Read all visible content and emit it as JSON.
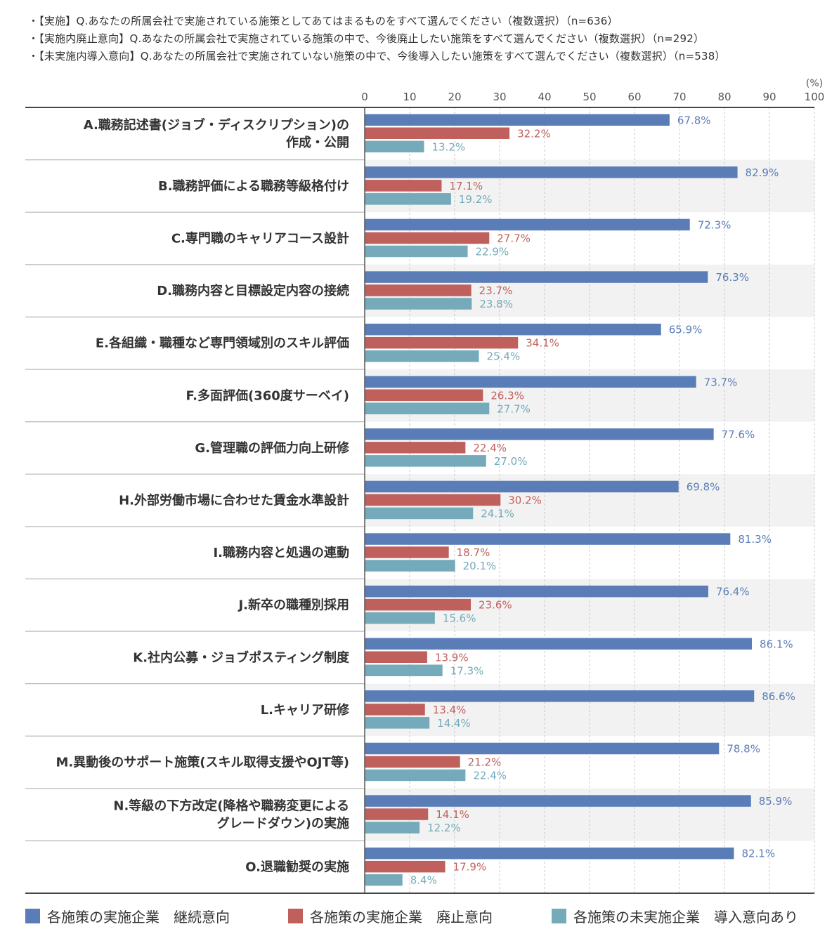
{
  "notes": [
    "・【実施】Q.あなたの所属会社で実施されている施策としてあてはまるものをすべて選んでください（複数選択）（n=636）",
    "・【実施内廃止意向】Q.あなたの所属会社で実施されている施策の中で、今後廃止したい施策をすべて選んでください（複数選択）（n=292）",
    "・【未実施内導入意向】Q.あなたの所属会社で実施されていない施策の中で、今後導入したい施策をすべて選んでください（複数選択）（n=538）"
  ],
  "colors": {
    "continue": "#5a7db8",
    "abolish": "#c0605c",
    "introduce": "#74aab9",
    "row_shade": "#f2f2f2",
    "grid": "#c8c8c8",
    "axis": "#555555"
  },
  "chart_data": {
    "type": "bar",
    "orientation": "horizontal",
    "unit": "(%)",
    "xlim": [
      0,
      100
    ],
    "xticks": [
      "0",
      "10",
      "20",
      "30",
      "40",
      "50",
      "60",
      "70",
      "80",
      "90",
      "100"
    ],
    "grid": true,
    "legend_position": "bottom",
    "categories": [
      [
        "A.職務記述書(ジョブ・ディスクリプション)の",
        "作成・公開"
      ],
      [
        "B.職務評価による職務等級格付け"
      ],
      [
        "C.専門職のキャリアコース設計"
      ],
      [
        "D.職務内容と目標設定内容の接続"
      ],
      [
        "E.各組織・職種など専門領域別のスキル評価"
      ],
      [
        "F.多面評価(360度サーベイ)"
      ],
      [
        "G.管理職の評価力向上研修"
      ],
      [
        "H.外部労働市場に合わせた賃金水準設計"
      ],
      [
        "I.職務内容と処遇の連動"
      ],
      [
        "J.新卒の職種別採用"
      ],
      [
        "K.社内公募・ジョブポスティング制度"
      ],
      [
        "L.キャリア研修"
      ],
      [
        "M.異動後のサポート施策(スキル取得支援やOJT等)"
      ],
      [
        "N.等級の下方改定(降格や職務変更による",
        "グレードダウン)の実施"
      ],
      [
        "O.退職勧奨の実施"
      ]
    ],
    "series": [
      {
        "name": "各施策の実施企業　継続意向",
        "values": [
          67.8,
          82.9,
          72.3,
          76.3,
          65.9,
          73.7,
          77.6,
          69.8,
          81.3,
          76.4,
          86.1,
          86.6,
          78.8,
          85.9,
          82.1
        ],
        "labels": [
          "67.8%",
          "82.9%",
          "72.3%",
          "76.3%",
          "65.9%",
          "73.7%",
          "77.6%",
          "69.8%",
          "81.3%",
          "76.4%",
          "86.1%",
          "86.6%",
          "78.8%",
          "85.9%",
          "82.1%"
        ]
      },
      {
        "name": "各施策の実施企業　廃止意向",
        "values": [
          32.2,
          17.1,
          27.7,
          23.7,
          34.1,
          26.3,
          22.4,
          30.2,
          18.7,
          23.6,
          13.9,
          13.4,
          21.2,
          14.1,
          17.9
        ],
        "labels": [
          "32.2%",
          "17.1%",
          "27.7%",
          "23.7%",
          "34.1%",
          "26.3%",
          "22.4%",
          "30.2%",
          "18.7%",
          "23.6%",
          "13.9%",
          "13.4%",
          "21.2%",
          "14.1%",
          "17.9%"
        ]
      },
      {
        "name": "各施策の未実施企業　導入意向あり",
        "values": [
          13.2,
          19.2,
          22.9,
          23.8,
          25.4,
          27.7,
          27.0,
          24.1,
          20.1,
          15.6,
          17.3,
          14.4,
          22.4,
          12.2,
          8.4
        ],
        "labels": [
          "13.2%",
          "19.2%",
          "22.9%",
          "23.8%",
          "25.4%",
          "27.7%",
          "27.0%",
          "24.1%",
          "20.1%",
          "15.6%",
          "17.3%",
          "14.4%",
          "22.4%",
          "12.2%",
          "8.4%"
        ]
      }
    ]
  },
  "legend": [
    {
      "label": "各施策の実施企業　継続意向",
      "color_key": "continue"
    },
    {
      "label": "各施策の実施企業　廃止意向",
      "color_key": "abolish"
    },
    {
      "label": "各施策の未実施企業　導入意向あり",
      "color_key": "introduce"
    }
  ]
}
